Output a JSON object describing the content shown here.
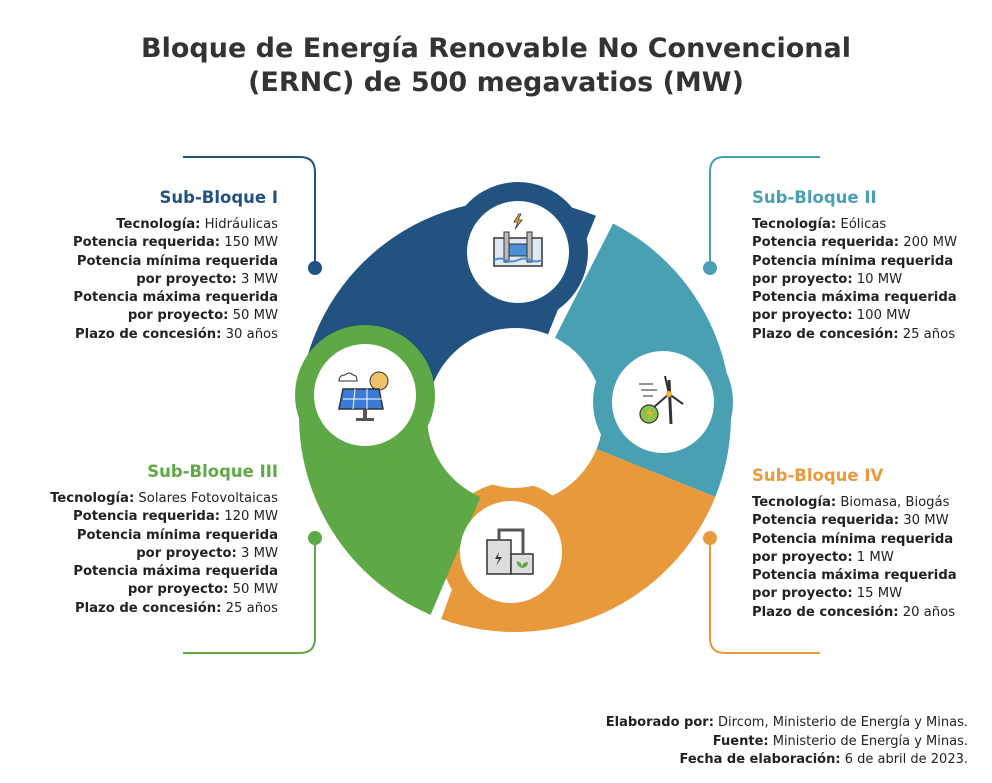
{
  "title_line1": "Bloque de Energía Renovable No Convencional",
  "title_line2": "(ERNC) de 500 megavatios (MW)",
  "colors": {
    "sub1": "#22527f",
    "sub2": "#4aa0b3",
    "sub3": "#5ea945",
    "sub4": "#e8993c"
  },
  "blocks": [
    {
      "title": "Sub-Bloque I",
      "icon": "hydroelectric-dam-icon",
      "rows": [
        {
          "label": "Tecnología:",
          "value": " Hidráulicas"
        },
        {
          "label": "Potencia requerida:",
          "value": " 150 MW"
        },
        {
          "label": "Potencia mínima requerida",
          "value": ""
        },
        {
          "label": "por proyecto:",
          "value": " 3 MW"
        },
        {
          "label": "Potencia máxima requerida",
          "value": ""
        },
        {
          "label": "por proyecto:",
          "value": " 50 MW"
        },
        {
          "label": "Plazo de concesión:",
          "value": " 30 años"
        }
      ]
    },
    {
      "title": "Sub-Bloque II",
      "icon": "wind-turbine-icon",
      "rows": [
        {
          "label": "Tecnología:",
          "value": " Eólicas"
        },
        {
          "label": "Potencia requerida:",
          "value": " 200 MW"
        },
        {
          "label": "Potencia mínima requerida",
          "value": ""
        },
        {
          "label": "por proyecto:",
          "value": " 10 MW"
        },
        {
          "label": "Potencia máxima requerida",
          "value": ""
        },
        {
          "label": "por proyecto:",
          "value": " 100 MW"
        },
        {
          "label": "Plazo de concesión:",
          "value": " 25 años"
        }
      ]
    },
    {
      "title": "Sub-Bloque III",
      "icon": "solar-panel-icon",
      "rows": [
        {
          "label": "Tecnología:",
          "value": " Solares Fotovoltaicas"
        },
        {
          "label": "Potencia requerida:",
          "value": " 120 MW"
        },
        {
          "label": "Potencia mínima requerida",
          "value": ""
        },
        {
          "label": "por proyecto:",
          "value": " 3 MW"
        },
        {
          "label": "Potencia máxima requerida",
          "value": ""
        },
        {
          "label": "por proyecto:",
          "value": " 50 MW"
        },
        {
          "label": "Plazo de concesión:",
          "value": " 25 años"
        }
      ]
    },
    {
      "title": "Sub-Bloque IV",
      "icon": "biogas-plant-icon",
      "rows": [
        {
          "label": "Tecnología:",
          "value": " Biomasa, Biogás"
        },
        {
          "label": "Potencia requerida:",
          "value": " 30 MW"
        },
        {
          "label": "Potencia mínima requerida",
          "value": ""
        },
        {
          "label": "por proyecto:",
          "value": " 1 MW"
        },
        {
          "label": "Potencia máxima requerida",
          "value": ""
        },
        {
          "label": "por proyecto:",
          "value": " 15 MW"
        },
        {
          "label": "Plazo de concesión:",
          "value": " 20 años"
        }
      ]
    }
  ],
  "footer": [
    {
      "label": "Elaborado por:",
      "value": " Dircom, Ministerio de Energía y Minas."
    },
    {
      "label": "Fuente:",
      "value": " Ministerio de Energía y Minas."
    },
    {
      "label": "Fecha de elaboración:",
      "value": " 6 de abril de 2023."
    }
  ]
}
